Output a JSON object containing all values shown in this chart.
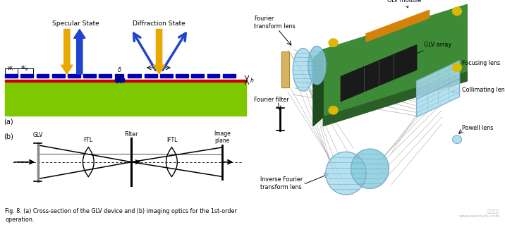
{
  "fig_width": 7.16,
  "fig_height": 3.19,
  "dpi": 100,
  "bg_color": "#ffffff",
  "left_panel": {
    "part_a": {
      "label": "(a)",
      "specular_text": "Specular State",
      "diffraction_text": "Diffraction State",
      "green_color": "#7ec800",
      "red_color": "#cc0000",
      "blue_color": "#0000bb",
      "yellow_color": "#e8a800",
      "arrow_blue": "#2244cc"
    },
    "part_b": {
      "label": "(b)",
      "caption": "Fig. 8. (a) Cross-section of the GLV device and (b) imaging optics for the 1st-order\noperation."
    }
  },
  "right_panel": {
    "glv_module": "GLV module",
    "glv_array": "GLV array",
    "focusing_lens": "Focusing lens",
    "collimating_lens": "Collimating lens",
    "fourier_transform_lens": "Fourier\ntransform lens",
    "fourier_filter": "Fourier filter",
    "inverse_fourier": "Inverse Fourier\ntransform lens",
    "powell_lens": "Powell lens",
    "watermark_line1": "电子发烧友",
    "watermark_line2": "www.elecfans.com",
    "board_green": "#3d8b37",
    "board_dark": "#2a5f27",
    "board_side": "#1e4a1c",
    "lens_cyan": "#aaddee",
    "lens_cyan2": "#88ccdd",
    "orange_color": "#d4820a",
    "yellow_bolt": "#ddb800",
    "beam_gray": "#999999"
  }
}
